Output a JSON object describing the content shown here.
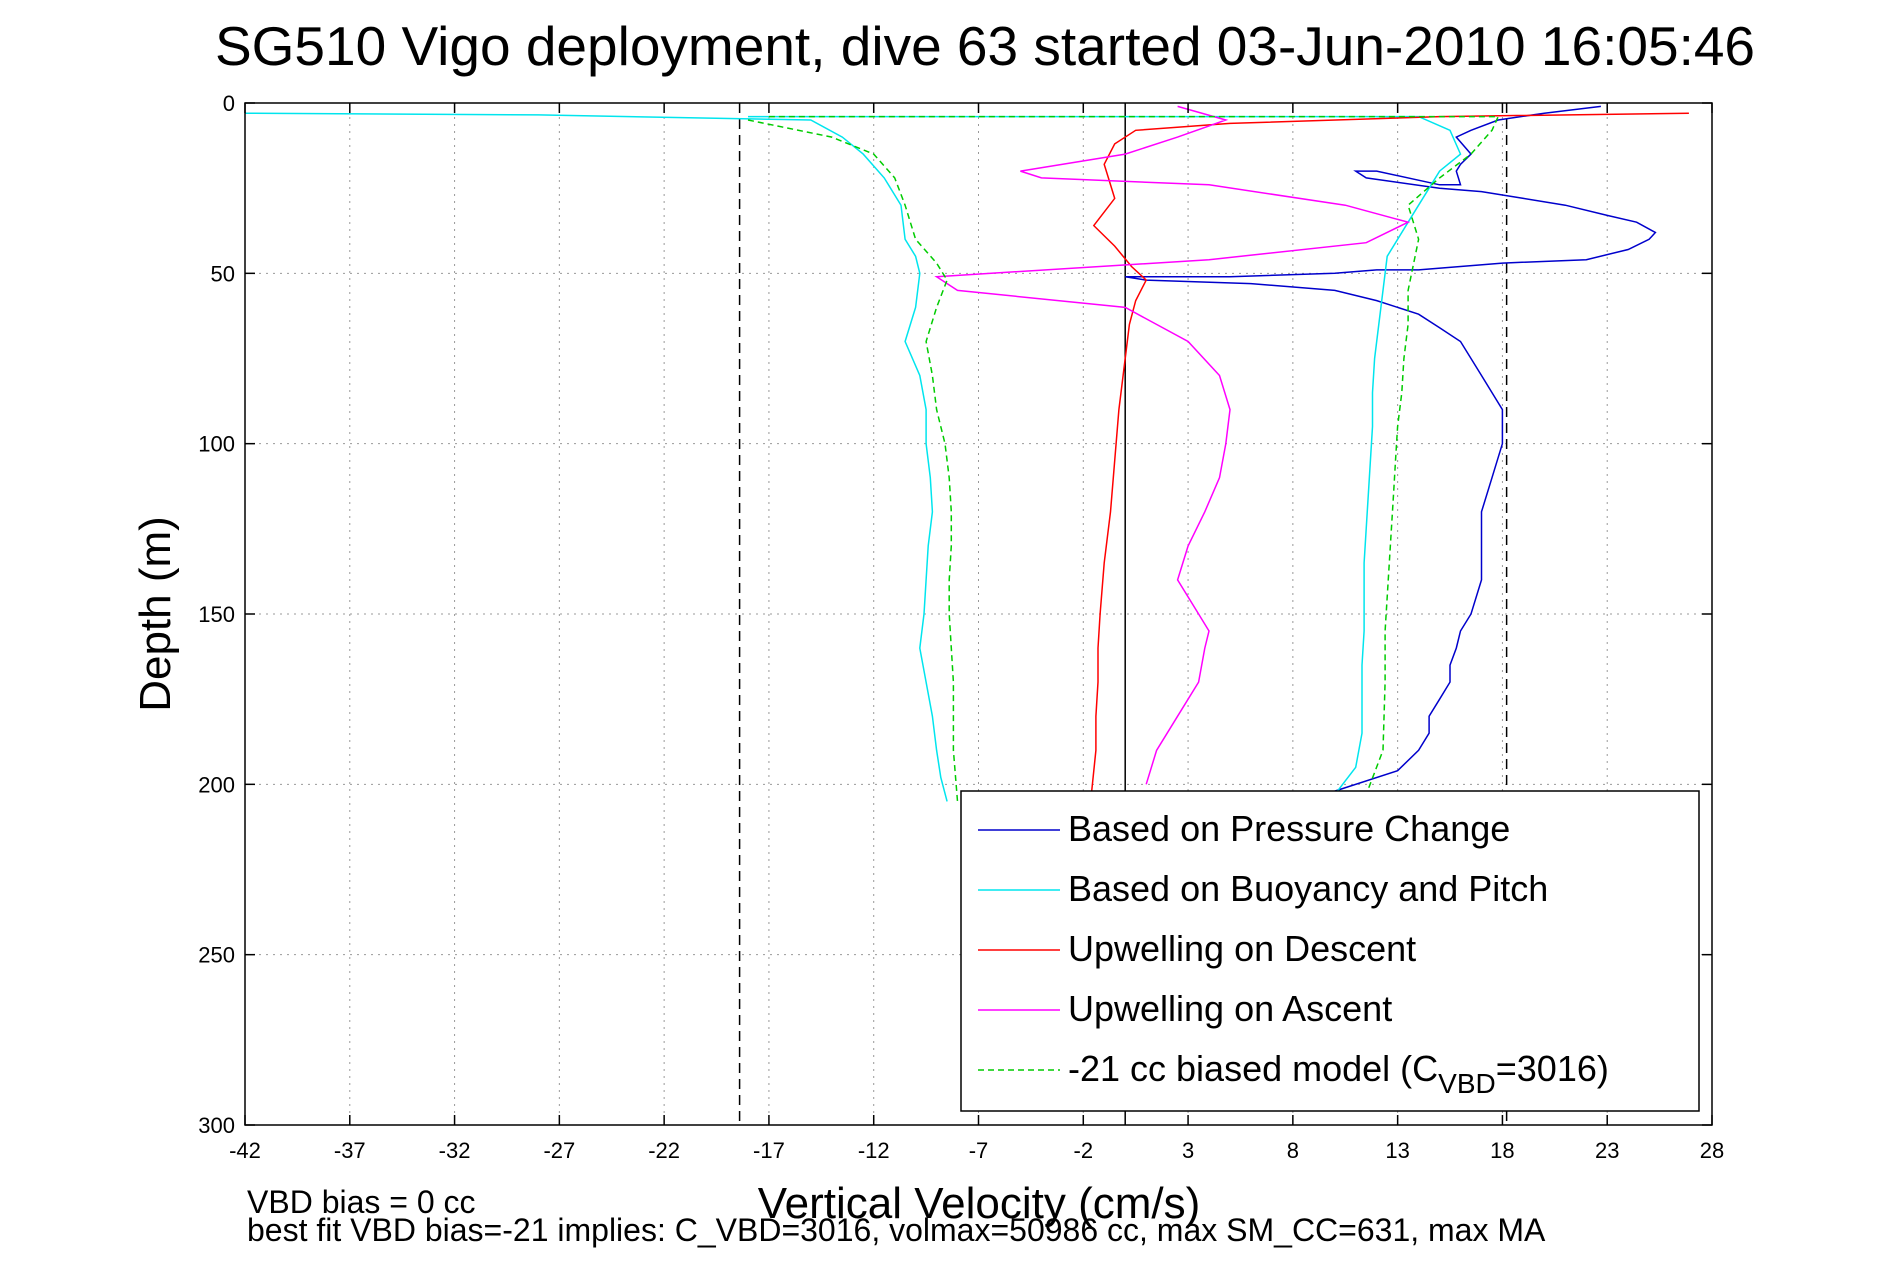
{
  "chart_data": {
    "type": "line",
    "title": "SG510 Vigo deployment, dive 63 started 03-Jun-2010 16:05:46",
    "xlabel": "Vertical Velocity (cm/s)",
    "ylabel": "Depth (m)",
    "xlim": [
      -42,
      28
    ],
    "ylim": [
      0,
      300
    ],
    "y_reversed": true,
    "grid": true,
    "xticks": [
      -42,
      -37,
      -32,
      -27,
      -22,
      -17,
      -12,
      -7,
      -2,
      3,
      8,
      13,
      18,
      23,
      28
    ],
    "yticks": [
      0,
      50,
      100,
      150,
      200,
      250,
      300
    ],
    "xtick_labels": [
      "-42",
      "-37",
      "-32",
      "-27",
      "-22",
      "-17",
      "-12",
      "-7",
      "-2",
      "3",
      "8",
      "13",
      "18",
      "23",
      "28"
    ],
    "ytick_labels": [
      "0",
      "50",
      "100",
      "150",
      "200",
      "250",
      "300"
    ],
    "legend_position": "lower-right",
    "series": [
      {
        "name": "Based on Pressure Change",
        "color": "#0000cc",
        "style": "solid",
        "x": [
          22.7,
          20,
          17.8,
          16.5,
          15.8,
          16.5,
          16,
          15.8,
          15.9,
          16,
          15,
          12,
          11,
          11.5,
          15,
          17,
          19,
          21,
          23,
          24.4,
          25.3,
          25,
          24,
          22,
          18,
          16,
          14,
          12,
          10,
          5,
          0,
          1,
          6,
          10,
          12,
          14,
          15,
          16,
          16.5,
          17,
          17.5,
          18,
          18,
          17.5,
          17,
          17,
          17,
          16.5,
          16,
          15.8,
          15.5,
          15.5,
          15,
          14.5,
          14.5,
          14,
          13,
          10
        ],
        "y": [
          1,
          3,
          5,
          8,
          10,
          15,
          18,
          20,
          22,
          24,
          24,
          20,
          20,
          22,
          25,
          26,
          28,
          30,
          33,
          35,
          38,
          40,
          43,
          46,
          47,
          48,
          49,
          49,
          50,
          51,
          51,
          52,
          53,
          55,
          58,
          62,
          66,
          70,
          75,
          80,
          85,
          90,
          100,
          110,
          120,
          130,
          140,
          150,
          155,
          160,
          165,
          170,
          175,
          180,
          185,
          190,
          196,
          202
        ]
      },
      {
        "name": "Based on Buoyancy and Pitch",
        "color": "#00e5ee",
        "style": "solid",
        "x": [
          -42,
          -28,
          -15,
          -13.5,
          -12.5,
          -11.5,
          -10.7,
          -10.5,
          -10,
          -9.8,
          -10,
          -10.5,
          -9.8,
          -9.5,
          -9.5,
          -9.3,
          -9.2,
          -9.4,
          -9.5,
          -9.6,
          -9.8,
          -9.5,
          -9.2,
          -9,
          -8.8,
          -8.5
        ],
        "y": [
          3,
          3.5,
          5,
          10,
          15,
          22,
          30,
          40,
          45,
          50,
          60,
          70,
          80,
          90,
          100,
          110,
          120,
          130,
          140,
          150,
          160,
          170,
          180,
          190,
          198,
          205
        ],
        "x2": [
          -18,
          14,
          15.5,
          16,
          15,
          14.5,
          13.5,
          12.5,
          12.3,
          12.1,
          11.9,
          11.8,
          11.8,
          11.7,
          11.6,
          11.5,
          11.4,
          11.4,
          11.4,
          11.3,
          11.3,
          11,
          10
        ],
        "y2": [
          4,
          4,
          8,
          15,
          20,
          25,
          35,
          45,
          55,
          65,
          75,
          85,
          95,
          105,
          115,
          125,
          135,
          145,
          155,
          165,
          185,
          195,
          203
        ]
      },
      {
        "name": "Upwelling on Descent",
        "color": "#ff0000",
        "style": "solid",
        "x": [
          26.9,
          15,
          5,
          0.5,
          -0.5,
          -1,
          -0.8,
          -0.5,
          -1.5,
          -0.5,
          0.3,
          1,
          0.5,
          0.2,
          0,
          -0.3,
          -0.5,
          -0.7,
          -1,
          -1.2,
          -1.3,
          -1.3,
          -1.4,
          -1.4,
          -1.5,
          -1.6
        ],
        "y": [
          3,
          4,
          6,
          8,
          12,
          18,
          22,
          28,
          36,
          42,
          48,
          52,
          58,
          65,
          75,
          90,
          105,
          120,
          135,
          150,
          160,
          170,
          180,
          190,
          196,
          202
        ]
      },
      {
        "name": "Upwelling on Ascent",
        "color": "#ff00ff",
        "style": "solid",
        "x": [
          2.5,
          4.8,
          2.5,
          0,
          -5,
          -4,
          4,
          10.5,
          13.5,
          11.5,
          4,
          -9,
          -8,
          0,
          3,
          4.5,
          5,
          4.8,
          4.5,
          3.8,
          3,
          2.5,
          3.5,
          4,
          3.8,
          3.5,
          2.5,
          1.5,
          1
        ],
        "y": [
          1,
          5,
          10,
          15,
          20,
          22,
          24,
          30,
          35,
          41,
          46,
          51,
          55,
          60,
          70,
          80,
          90,
          100,
          110,
          120,
          130,
          140,
          150,
          155,
          160,
          170,
          180,
          190,
          200
        ]
      },
      {
        "name": "-21 cc biased model (C_VBD=3016)",
        "legend_prefix": "-21 cc biased model (C",
        "legend_sub": "VBD",
        "legend_suffix": "=3016)",
        "color": "#00cc00",
        "style": "dashed",
        "x": [
          -18,
          -14,
          -12,
          -11,
          -10.5,
          -10,
          -9,
          -8.5,
          -9,
          -9.5,
          -9.2,
          -9,
          -8.6,
          -8.4,
          -8.3,
          -8.3,
          -8.4,
          -8.4,
          -8.3,
          -8.2,
          -8.2,
          -8
        ],
        "y": [
          5,
          10,
          15,
          22,
          30,
          40,
          47,
          52,
          60,
          70,
          80,
          90,
          100,
          110,
          120,
          130,
          140,
          150,
          160,
          170,
          190,
          205
        ],
        "x2": [
          -17,
          17.8,
          17.5,
          16.5,
          15,
          13.5,
          14,
          13.5,
          13.5,
          13.3,
          13.2,
          13.0,
          12.9,
          12.8,
          12.7,
          12.6,
          12.5,
          12.4,
          12.4,
          12.3,
          11.5
        ],
        "y2": [
          4,
          4,
          8,
          15,
          22,
          30,
          40,
          55,
          65,
          75,
          85,
          95,
          105,
          115,
          125,
          135,
          145,
          155,
          170,
          190,
          203
        ]
      }
    ],
    "reference_lines": [
      {
        "x": -18.4,
        "color": "#000000",
        "style": "dashed"
      },
      {
        "x": 0,
        "color": "#000000",
        "style": "solid"
      },
      {
        "x": 18.2,
        "color": "#000000",
        "style": "dashed"
      }
    ]
  },
  "footnotes": {
    "line1": "VBD bias = 0 cc",
    "line2": "best fit VBD bias=-21 implies: C_VBD=3016, volmax=50986 cc, max SM_CC=631, max MA"
  }
}
